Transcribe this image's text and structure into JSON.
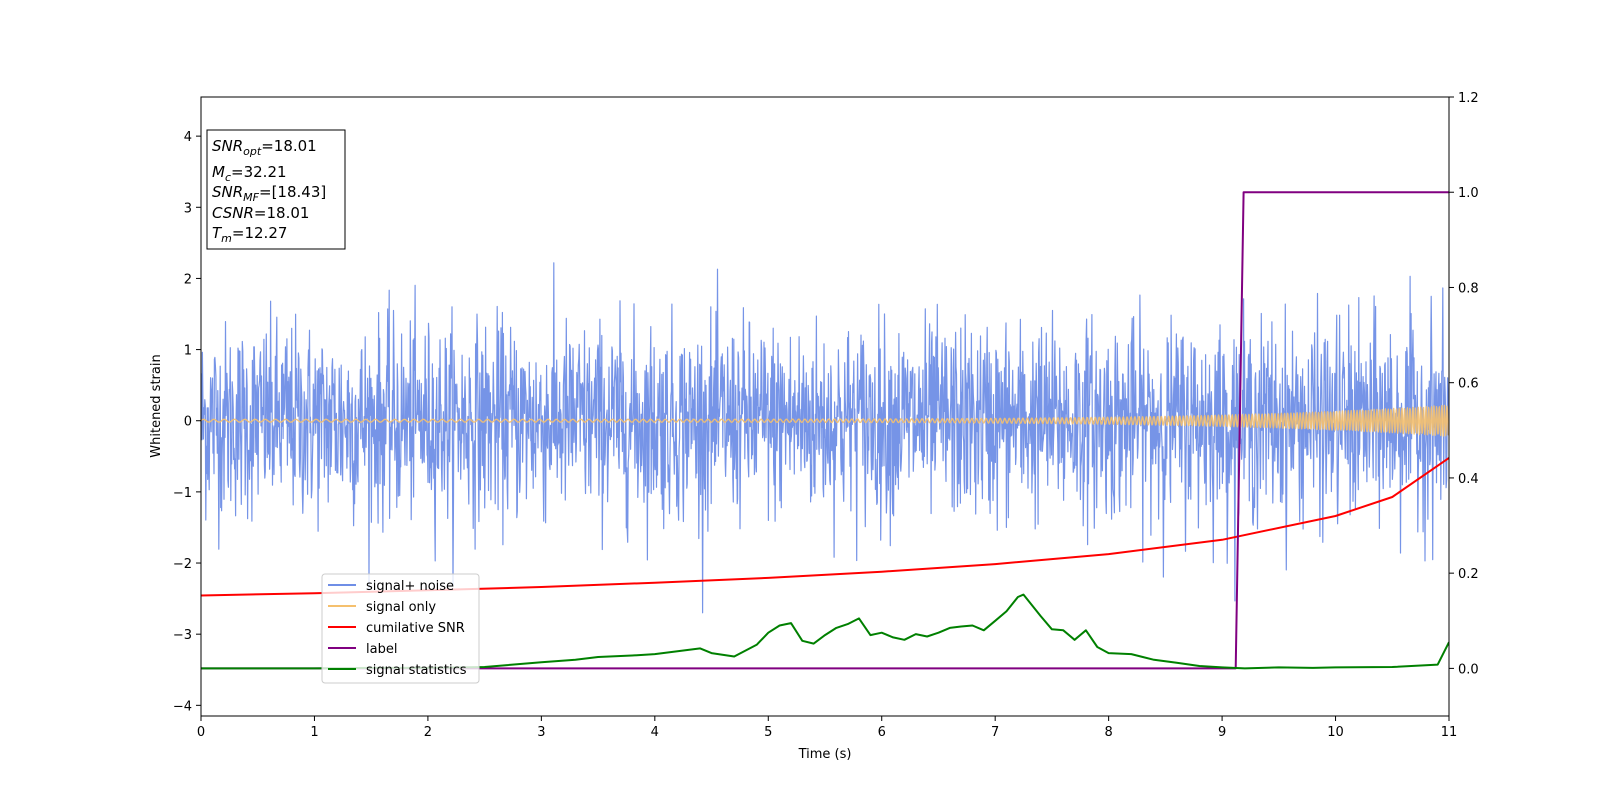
{
  "chart_data": {
    "type": "line",
    "xlabel": "Time (s)",
    "ylabel": "Whitened strain",
    "xlim": [
      0,
      11
    ],
    "ylim_left": [
      -4.15,
      4.55
    ],
    "ylim_right": [
      -0.1,
      1.2
    ],
    "x_ticks": [
      0,
      1,
      2,
      3,
      4,
      5,
      6,
      7,
      8,
      9,
      10,
      11
    ],
    "y_ticks_left": [
      -4,
      -3,
      -2,
      -1,
      0,
      1,
      2,
      3,
      4
    ],
    "y_ticks_left_labels": [
      "−4",
      "−3",
      "−2",
      "−1",
      "0",
      "1",
      "2",
      "3",
      "4"
    ],
    "y_ticks_right": [
      0.0,
      0.2,
      0.4,
      0.6,
      0.8,
      1.0,
      1.2
    ],
    "y_ticks_right_labels": [
      "0.0",
      "0.2",
      "0.4",
      "0.6",
      "0.8",
      "1.0",
      "1.2"
    ],
    "legend_position": "lower-left",
    "info_box": [
      {
        "main": "SNR",
        "sub": "opt",
        "rest": "=18.01"
      },
      {
        "main": "M",
        "sub": "c",
        "rest": "=32.21"
      },
      {
        "main": "SNR",
        "sub": "MF",
        "rest": "=[18.43]"
      },
      {
        "main": "CSNR",
        "sub": "",
        "rest": "=18.01"
      },
      {
        "main": "T",
        "sub": "m",
        "rest": "=12.27"
      }
    ],
    "series": [
      {
        "name": "signal+ noise",
        "axis": "left",
        "color": "#6f8ee6",
        "description_kind": "noise",
        "amplitude_sigma": 0.68,
        "x_range": [
          0,
          11
        ]
      },
      {
        "name": "signal only",
        "axis": "left",
        "color": "#f5c06e",
        "description_kind": "chirp",
        "amplitude_start": 0.02,
        "amplitude_end": 0.22,
        "x_range": [
          0,
          11
        ]
      },
      {
        "name": "cumilative SNR",
        "axis": "right",
        "color": "#ff0000",
        "x": [
          0,
          1,
          2,
          3,
          4,
          5,
          6,
          7,
          8,
          9,
          10,
          10.5,
          11
        ],
        "y": [
          0.153,
          0.158,
          0.164,
          0.171,
          0.18,
          0.19,
          0.203,
          0.219,
          0.24,
          0.27,
          0.32,
          0.36,
          0.442
        ]
      },
      {
        "name": "label",
        "axis": "right",
        "color": "#800080",
        "x": [
          0,
          9.12,
          9.19,
          11
        ],
        "y": [
          0.0,
          0.0,
          1.0,
          1.0
        ]
      },
      {
        "name": "signal statistics",
        "axis": "right",
        "color": "#008000",
        "x": [
          0,
          0.5,
          1,
          1.5,
          2,
          2.5,
          2.7,
          3,
          3.3,
          3.5,
          3.8,
          4,
          4.2,
          4.4,
          4.5,
          4.7,
          4.9,
          5,
          5.1,
          5.2,
          5.3,
          5.4,
          5.5,
          5.6,
          5.7,
          5.8,
          5.9,
          6,
          6.1,
          6.2,
          6.3,
          6.4,
          6.5,
          6.6,
          6.7,
          6.8,
          6.9,
          7,
          7.1,
          7.2,
          7.25,
          7.3,
          7.4,
          7.5,
          7.6,
          7.7,
          7.8,
          7.9,
          8,
          8.2,
          8.4,
          8.6,
          8.8,
          9,
          9.2,
          9.5,
          9.8,
          10,
          10.5,
          10.9,
          11
        ],
        "y": [
          0.0,
          0.0,
          0.0,
          0.001,
          0.001,
          0.003,
          0.007,
          0.013,
          0.018,
          0.024,
          0.027,
          0.03,
          0.036,
          0.042,
          0.032,
          0.025,
          0.05,
          0.075,
          0.09,
          0.095,
          0.058,
          0.052,
          0.07,
          0.085,
          0.093,
          0.105,
          0.07,
          0.075,
          0.065,
          0.06,
          0.072,
          0.067,
          0.075,
          0.085,
          0.088,
          0.09,
          0.08,
          0.1,
          0.12,
          0.15,
          0.155,
          0.14,
          0.11,
          0.082,
          0.08,
          0.06,
          0.08,
          0.045,
          0.032,
          0.03,
          0.018,
          0.012,
          0.005,
          0.002,
          0.0,
          0.002,
          0.001,
          0.002,
          0.003,
          0.008,
          0.055
        ]
      }
    ]
  }
}
